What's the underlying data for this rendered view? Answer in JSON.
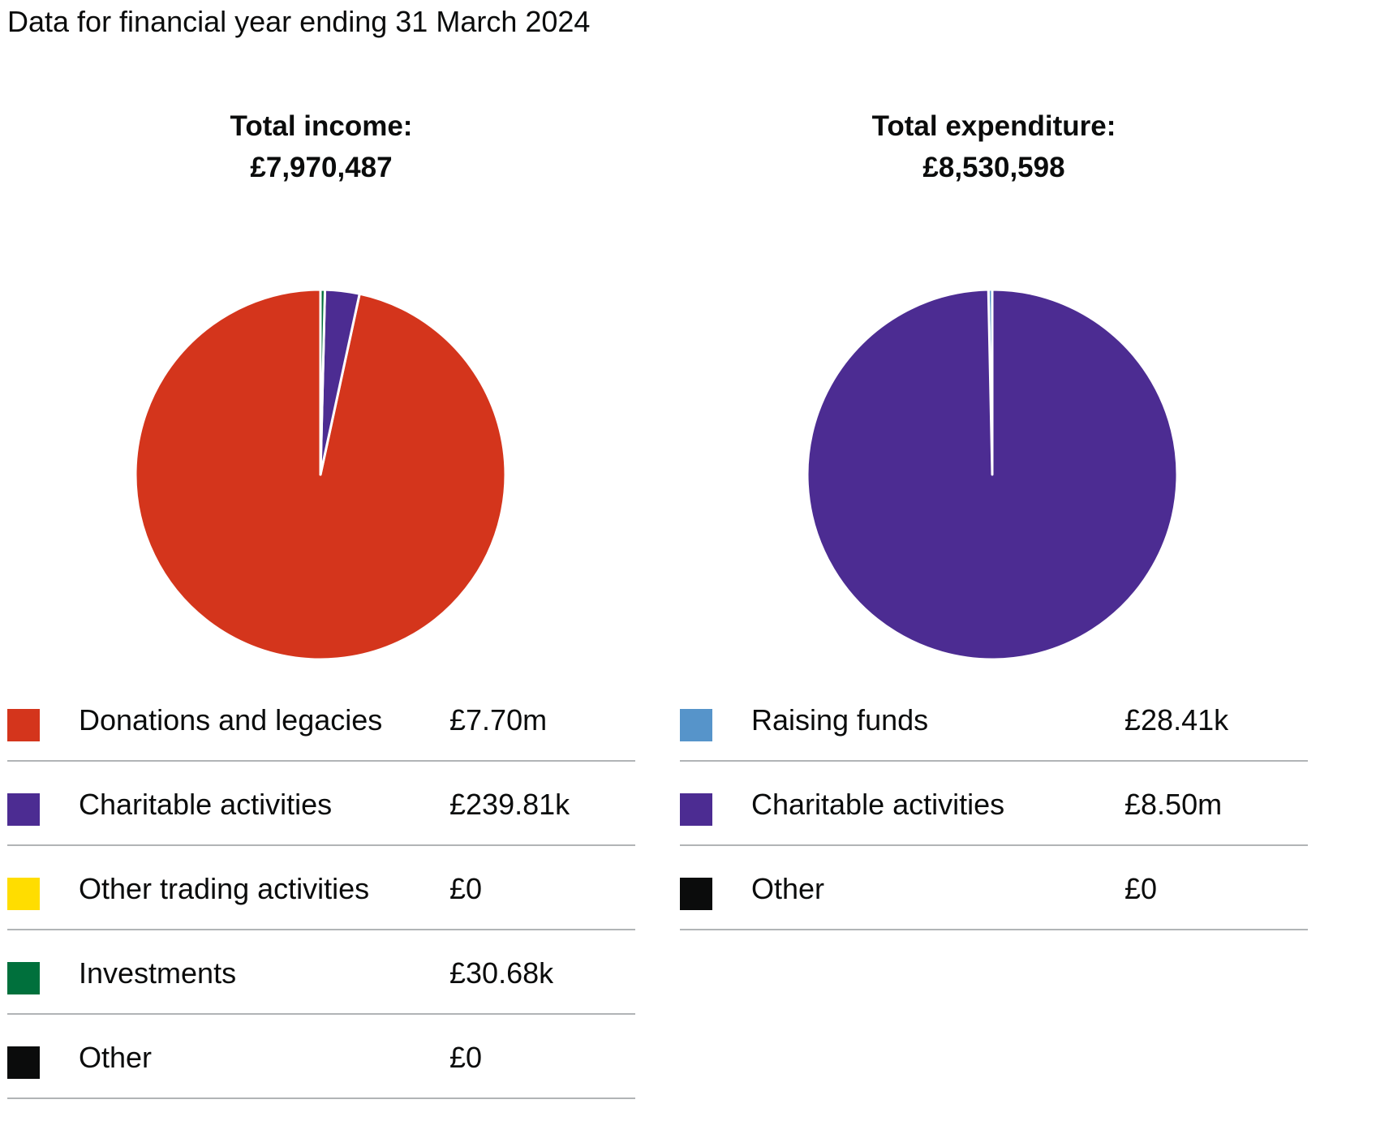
{
  "intro": "Data for financial year ending 31 March 2024",
  "chart_data": [
    {
      "type": "pie",
      "title": "Total income:",
      "subtitle": "£7,970,487",
      "categories": [
        "Donations and legacies",
        "Charitable activities",
        "Other trading activities",
        "Investments",
        "Other"
      ],
      "values": [
        7700000,
        239810,
        0,
        30680,
        0
      ],
      "value_labels": [
        "£7.70m",
        "£239.81k",
        "£0",
        "£30.68k",
        "£0"
      ],
      "colors": [
        "#d4351c",
        "#4c2c92",
        "#ffdd00",
        "#00703c",
        "#0b0c0c"
      ],
      "legend_placement": "bottom"
    },
    {
      "type": "pie",
      "title": "Total expenditure:",
      "subtitle": "£8,530,598",
      "categories": [
        "Raising funds",
        "Charitable activities",
        "Other"
      ],
      "values": [
        28410,
        8500000,
        0
      ],
      "value_labels": [
        "£28.41k",
        "£8.50m",
        "£0"
      ],
      "colors": [
        "#5694ca",
        "#4c2c92",
        "#0b0c0c"
      ],
      "legend_placement": "bottom"
    }
  ]
}
